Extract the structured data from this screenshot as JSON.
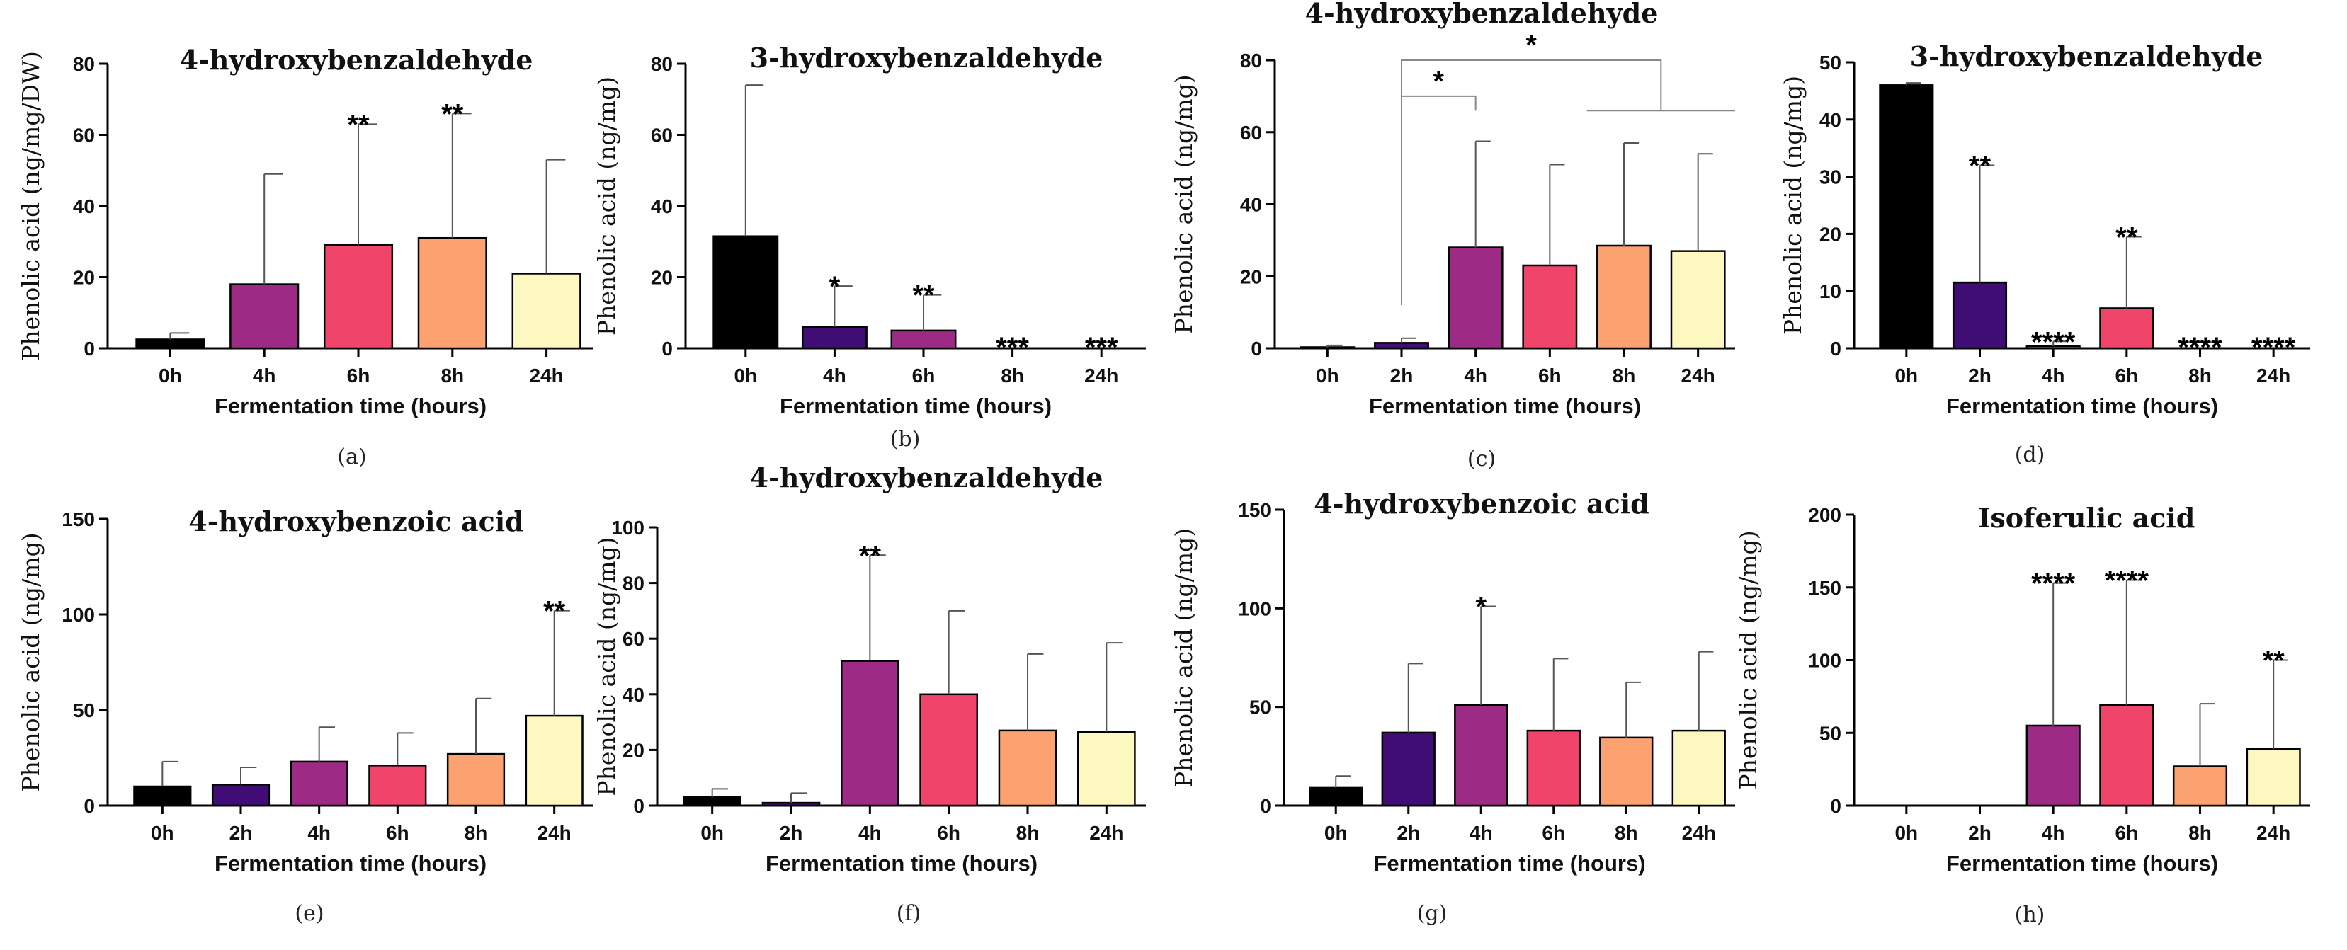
{
  "colors": {
    "0h": "#000000",
    "2h": "#3f0d73",
    "4h": "#9d2a85",
    "6h": "#f0446b",
    "8h": "#fca271",
    "24h": "#fcf8c0"
  },
  "chart_data": [
    {
      "type": "bar",
      "panel": "(a)",
      "title": "4-hydroxybenzaldehyde",
      "title_bold": false,
      "ylabel": "Phenolic acid (ng/mg/DW)",
      "xlabel": "Fermentation time (hours)",
      "ylim": [
        0,
        80
      ],
      "yticks": [
        0,
        20,
        40,
        60,
        80
      ],
      "categories": [
        "0h",
        "4h",
        "6h",
        "8h",
        "24h"
      ],
      "color_keys": [
        "0h",
        "4h",
        "6h",
        "8h",
        "24h"
      ],
      "values": [
        2.5,
        18,
        29,
        31,
        21
      ],
      "errors": [
        1.8,
        31,
        34,
        35,
        32
      ],
      "stars": [
        "",
        "",
        "**",
        "**",
        ""
      ]
    },
    {
      "type": "bar",
      "panel": "(b)",
      "title": "3-hydroxybenzaldehyde",
      "title_bold": true,
      "ylabel": "Phenolic acid (ng/mg)",
      "xlabel": "Fermentation time (hours)",
      "ylim": [
        0,
        80
      ],
      "yticks": [
        0,
        20,
        40,
        60,
        80
      ],
      "categories": [
        "0h",
        "4h",
        "6h",
        "8h",
        "24h"
      ],
      "color_keys": [
        "0h",
        "2h",
        "4h",
        "6h",
        "8h"
      ],
      "values": [
        31.5,
        6,
        5,
        0,
        0
      ],
      "errors": [
        42.5,
        11.5,
        10,
        0,
        0
      ],
      "stars": [
        "",
        "*",
        "**",
        "***",
        "***"
      ]
    },
    {
      "type": "bar",
      "panel": "(c)",
      "title": "4-hydroxybenzaldehyde",
      "title_bold": true,
      "ylabel": "Phenolic acid (ng/mg)",
      "xlabel": "Fermentation time (hours)",
      "ylim": [
        0,
        80
      ],
      "yticks": [
        0,
        20,
        40,
        60,
        80
      ],
      "categories": [
        "0h",
        "2h",
        "4h",
        "6h",
        "8h",
        "24h"
      ],
      "color_keys": [
        "0h",
        "2h",
        "4h",
        "6h",
        "8h",
        "24h"
      ],
      "values": [
        0.3,
        1.5,
        28,
        23,
        28.5,
        27
      ],
      "errors": [
        0.5,
        1.3,
        29.5,
        28,
        28.5,
        27
      ],
      "stars": [
        "",
        "",
        "",
        "",
        "",
        ""
      ],
      "brackets": [
        {
          "from": 1,
          "to": 2,
          "y": 70,
          "label": "*",
          "drop_from": 12
        },
        {
          "from": 1,
          "to": 4.5,
          "y": 80,
          "label": "*",
          "drop_from": 12,
          "side_y": 66,
          "side_from": 3.5,
          "side_to": 5.5
        }
      ]
    },
    {
      "type": "bar",
      "panel": "(d)",
      "title": "3-hydroxybenzaldehyde",
      "title_bold": true,
      "ylabel": "Phenolic acid (ng/mg)",
      "xlabel": "Fermentation time (hours)",
      "ylim": [
        0,
        50
      ],
      "yticks": [
        0,
        10,
        20,
        30,
        40,
        50
      ],
      "categories": [
        "0h",
        "2h",
        "4h",
        "6h",
        "8h",
        "24h"
      ],
      "color_keys": [
        "0h",
        "2h",
        "4h",
        "6h",
        "8h",
        "24h"
      ],
      "values": [
        46,
        11.5,
        0.4,
        7,
        0,
        0
      ],
      "errors": [
        0.4,
        20.5,
        0.8,
        12.5,
        0,
        0
      ],
      "stars": [
        "",
        "**",
        "****",
        "**",
        "****",
        "****"
      ]
    },
    {
      "type": "bar",
      "panel": "(e)",
      "title": "4-hydroxybenzoic acid",
      "title_bold": true,
      "ylabel": "Phenolic acid (ng/mg)",
      "xlabel": "Fermentation time (hours)",
      "ylim": [
        0,
        150
      ],
      "yticks": [
        0,
        50,
        100,
        150
      ],
      "categories": [
        "0h",
        "2h",
        "4h",
        "6h",
        "8h",
        "24h"
      ],
      "color_keys": [
        "0h",
        "2h",
        "4h",
        "6h",
        "8h",
        "24h"
      ],
      "values": [
        10,
        11,
        23,
        21,
        27,
        47
      ],
      "errors": [
        13,
        9,
        18,
        17,
        29,
        55
      ],
      "stars": [
        "",
        "",
        "",
        "",
        "",
        "**"
      ]
    },
    {
      "type": "bar",
      "panel": "(f)",
      "title": "4-hydroxybenzaldehyde",
      "title_bold": true,
      "ylabel": "Phenolic acid (ng/mg)",
      "xlabel": "Fermentation time (hours)",
      "ylim": [
        0,
        100
      ],
      "yticks": [
        0,
        20,
        40,
        60,
        80,
        100
      ],
      "categories": [
        "0h",
        "2h",
        "4h",
        "6h",
        "8h",
        "24h"
      ],
      "color_keys": [
        "0h",
        "2h",
        "4h",
        "6h",
        "8h",
        "24h"
      ],
      "values": [
        3,
        1,
        52,
        40,
        27,
        26.5
      ],
      "errors": [
        3,
        3.5,
        38,
        30,
        27.5,
        32
      ],
      "stars": [
        "",
        "",
        "**",
        "",
        "",
        ""
      ]
    },
    {
      "type": "bar",
      "panel": "(g)",
      "title": "4-hydroxybenzoic acid",
      "title_bold": true,
      "ylabel": "Phenolic acid (ng/mg)",
      "xlabel": "Fermentation time (hours)",
      "ylim": [
        0,
        150
      ],
      "yticks": [
        0,
        50,
        100,
        150
      ],
      "categories": [
        "0h",
        "2h",
        "4h",
        "6h",
        "8h",
        "24h"
      ],
      "color_keys": [
        "0h",
        "2h",
        "4h",
        "6h",
        "8h",
        "24h"
      ],
      "values": [
        9,
        37,
        51,
        38,
        34.5,
        38
      ],
      "errors": [
        6,
        35,
        50,
        36.5,
        28,
        40
      ],
      "stars": [
        "",
        "",
        "*",
        "",
        "",
        ""
      ]
    },
    {
      "type": "bar",
      "panel": "(h)",
      "title": "Isoferulic acid",
      "title_bold": true,
      "ylabel": "Phenolic acid (ng/mg)",
      "xlabel": "Fermentation time (hours)",
      "ylim": [
        0,
        200
      ],
      "yticks": [
        0,
        50,
        100,
        150,
        200
      ],
      "categories": [
        "0h",
        "2h",
        "4h",
        "6h",
        "8h",
        "24h"
      ],
      "color_keys": [
        "0h",
        "2h",
        "4h",
        "6h",
        "8h",
        "24h"
      ],
      "values": [
        0,
        0,
        55,
        69,
        27,
        39
      ],
      "errors": [
        0,
        0,
        98,
        86,
        43,
        61
      ],
      "stars": [
        "",
        "",
        "****",
        "****",
        "",
        "**"
      ]
    }
  ]
}
